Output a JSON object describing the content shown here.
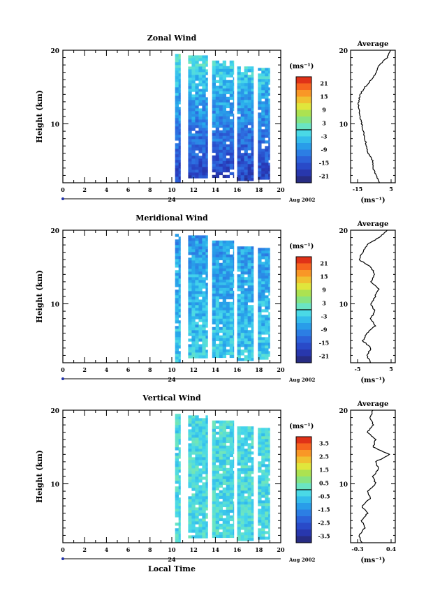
{
  "chart_data": [
    {
      "type": "heatmap",
      "title": "Zonal Wind",
      "ylabel": "Height (km)",
      "ylim": [
        2,
        20
      ],
      "yticks": [
        10,
        20
      ],
      "xlim": [
        0,
        20
      ],
      "xticks": [
        0,
        2,
        4,
        6,
        8,
        10,
        12,
        14,
        16,
        18,
        20
      ],
      "date_label": "24",
      "month_label": "Aug 2002",
      "colorbar": {
        "label": "(ms⁻¹)",
        "ticks": [
          "21",
          "15",
          "9",
          "3",
          "-3",
          "-9",
          "-15",
          "-21"
        ],
        "range": [
          -24,
          24
        ]
      },
      "data_columns": [
        {
          "x0": 10.3,
          "x1": 10.8,
          "y0": 2.2,
          "y1": 19.5
        },
        {
          "x0": 11.5,
          "x1": 13.3,
          "y0": 3.0,
          "y1": 19.3
        },
        {
          "x0": 13.7,
          "x1": 15.7,
          "y0": 2.8,
          "y1": 18.6
        },
        {
          "x0": 16.0,
          "x1": 17.5,
          "y0": 2.6,
          "y1": 17.8
        },
        {
          "x0": 17.9,
          "x1": 19.0,
          "y0": 2.8,
          "y1": 17.6
        }
      ],
      "field": {
        "low_mean": -18,
        "high_mean": 0,
        "spread": 4
      },
      "average": {
        "title": "Average",
        "xlim": [
          -20,
          8
        ],
        "xticks": [
          "-15",
          "5"
        ],
        "xlabel": "(ms⁻¹)",
        "heights": [
          2,
          3,
          4,
          5,
          6,
          7,
          8,
          9,
          10,
          11,
          12,
          13,
          14,
          15,
          16,
          17,
          18,
          19,
          20
        ],
        "values": [
          -2,
          -4,
          -6,
          -6,
          -9,
          -10,
          -11,
          -12,
          -13,
          -14,
          -15,
          -15,
          -14,
          -11,
          -7,
          -4,
          -2,
          3,
          5
        ]
      }
    },
    {
      "type": "heatmap",
      "title": "Meridional Wind",
      "ylabel": "Height (km)",
      "ylim": [
        2,
        20
      ],
      "yticks": [
        10,
        20
      ],
      "xlim": [
        0,
        20
      ],
      "xticks": [
        0,
        2,
        4,
        6,
        8,
        10,
        12,
        14,
        16,
        18,
        20
      ],
      "date_label": "24",
      "month_label": "Aug 2002",
      "colorbar": {
        "label": "(ms⁻¹)",
        "ticks": [
          "21",
          "15",
          "9",
          "3",
          "-3",
          "-9",
          "-15",
          "-21"
        ],
        "range": [
          -24,
          24
        ]
      },
      "data_columns": [
        {
          "x0": 10.3,
          "x1": 10.8,
          "y0": 2.2,
          "y1": 19.5
        },
        {
          "x0": 11.5,
          "x1": 13.3,
          "y0": 3.0,
          "y1": 19.3
        },
        {
          "x0": 13.7,
          "x1": 15.7,
          "y0": 2.8,
          "y1": 18.6
        },
        {
          "x0": 16.0,
          "x1": 17.5,
          "y0": 2.6,
          "y1": 17.8
        },
        {
          "x0": 17.9,
          "x1": 19.0,
          "y0": 2.8,
          "y1": 17.6
        }
      ],
      "field": {
        "low_mean": -3,
        "high_mean": -8,
        "spread": 4
      },
      "average": {
        "title": "Average",
        "xlim": [
          -5,
          6
        ],
        "xticks": [
          "-5",
          "5"
        ],
        "xlabel": "(ms⁻¹)",
        "heights": [
          2,
          3,
          4,
          5,
          6,
          7,
          8,
          9,
          10,
          11,
          12,
          13,
          14,
          15,
          16,
          17,
          18,
          19,
          20
        ],
        "values": [
          0,
          -1,
          0,
          -2,
          -1,
          1,
          0,
          1,
          0,
          1,
          2,
          0,
          1,
          0,
          -3,
          -2,
          -1,
          2,
          4
        ]
      }
    },
    {
      "type": "heatmap",
      "title": "Vertical Wind",
      "xlabel": "Local Time",
      "ylabel": "Height (km)",
      "ylim": [
        2,
        20
      ],
      "yticks": [
        10,
        20
      ],
      "xlim": [
        0,
        20
      ],
      "xticks": [
        0,
        2,
        4,
        6,
        8,
        10,
        12,
        14,
        16,
        18,
        20
      ],
      "date_label": "24",
      "month_label": "Aug 2002",
      "colorbar": {
        "label": "(ms⁻¹)",
        "ticks": [
          "3.5",
          "2.5",
          "1.5",
          "0.5",
          "-0.5",
          "-1.5",
          "-2.5",
          "-3.5"
        ],
        "range": [
          -4,
          4
        ]
      },
      "data_columns": [
        {
          "x0": 10.3,
          "x1": 10.8,
          "y0": 2.2,
          "y1": 19.5
        },
        {
          "x0": 11.5,
          "x1": 13.3,
          "y0": 3.0,
          "y1": 19.3
        },
        {
          "x0": 13.7,
          "x1": 15.7,
          "y0": 2.8,
          "y1": 18.6
        },
        {
          "x0": 16.0,
          "x1": 17.5,
          "y0": 2.6,
          "y1": 17.8
        },
        {
          "x0": 17.9,
          "x1": 19.0,
          "y0": 2.8,
          "y1": 17.6
        }
      ],
      "field": {
        "low_mean": -0.2,
        "high_mean": -0.2,
        "spread": 0.6
      },
      "average": {
        "title": "Average",
        "xlim": [
          -0.4,
          0.4
        ],
        "xticks": [
          "-0.3",
          "0.4"
        ],
        "xlabel": "(ms⁻¹)",
        "heights": [
          2,
          3,
          4,
          5,
          6,
          7,
          8,
          9,
          10,
          11,
          12,
          13,
          14,
          15,
          16,
          17,
          18,
          19,
          20
        ],
        "values": [
          -0.2,
          -0.25,
          -0.15,
          -0.2,
          -0.1,
          -0.2,
          -0.05,
          -0.1,
          0.05,
          0.0,
          0.1,
          0.05,
          0.3,
          0.0,
          0.05,
          -0.1,
          0.0,
          -0.05,
          0.0
        ]
      }
    }
  ]
}
